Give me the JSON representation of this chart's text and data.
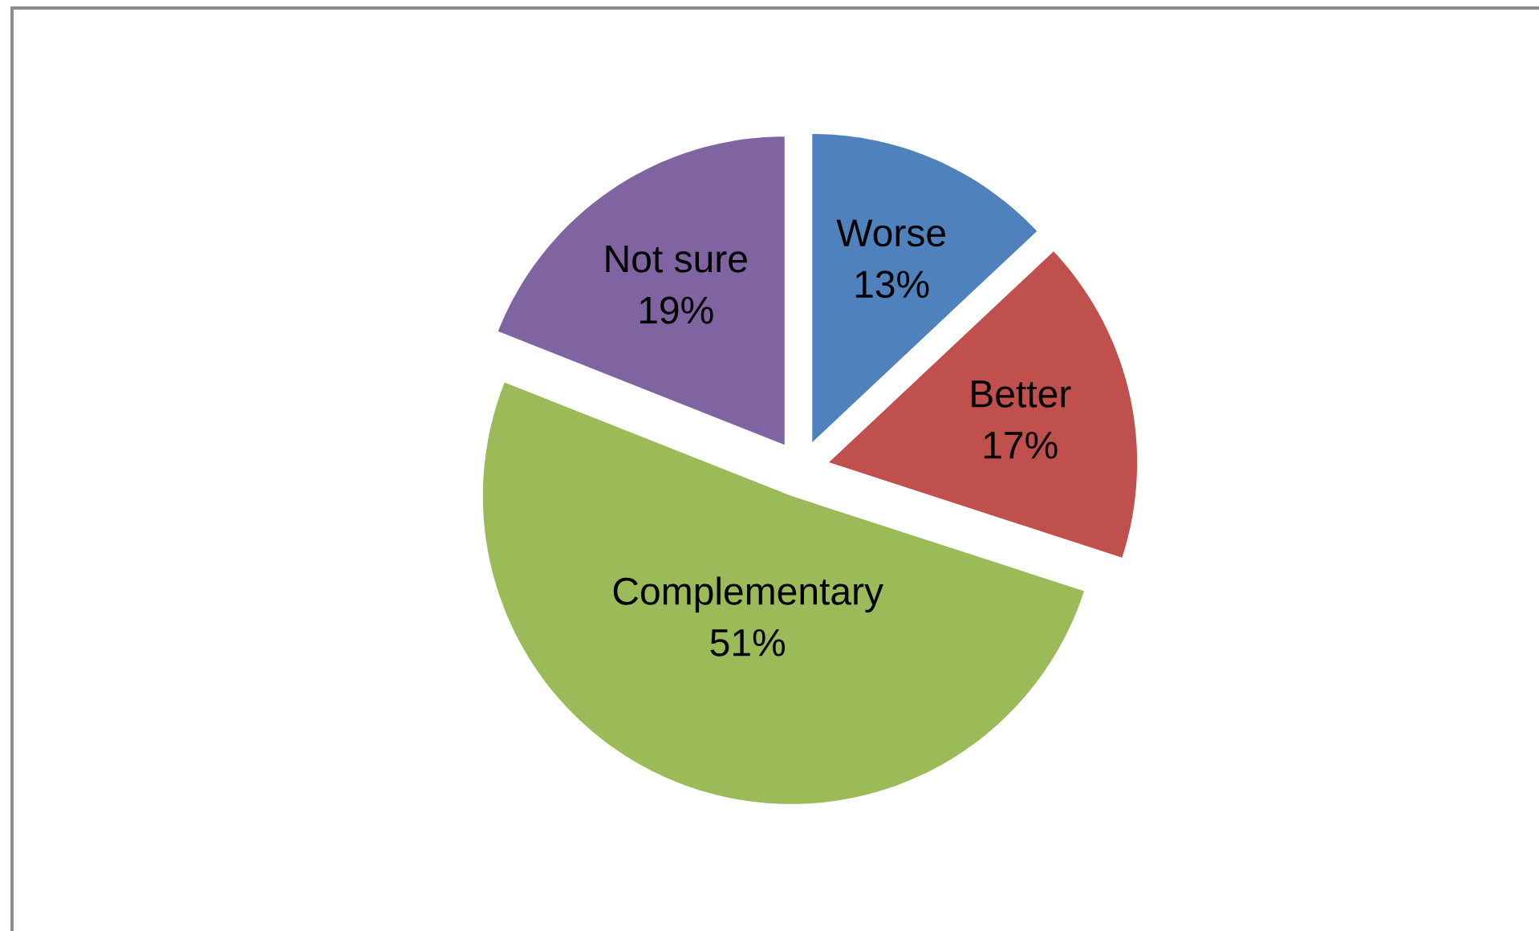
{
  "chart_data": {
    "type": "pie",
    "categories": [
      "Worse",
      "Better",
      "Complementary",
      "Not sure"
    ],
    "values": [
      13,
      17,
      51,
      19
    ],
    "value_labels": [
      "13%",
      "17%",
      "51%",
      "19%"
    ],
    "colors": [
      "#4f81bd",
      "#c0504d",
      "#9bbb59",
      "#8064a2"
    ]
  }
}
